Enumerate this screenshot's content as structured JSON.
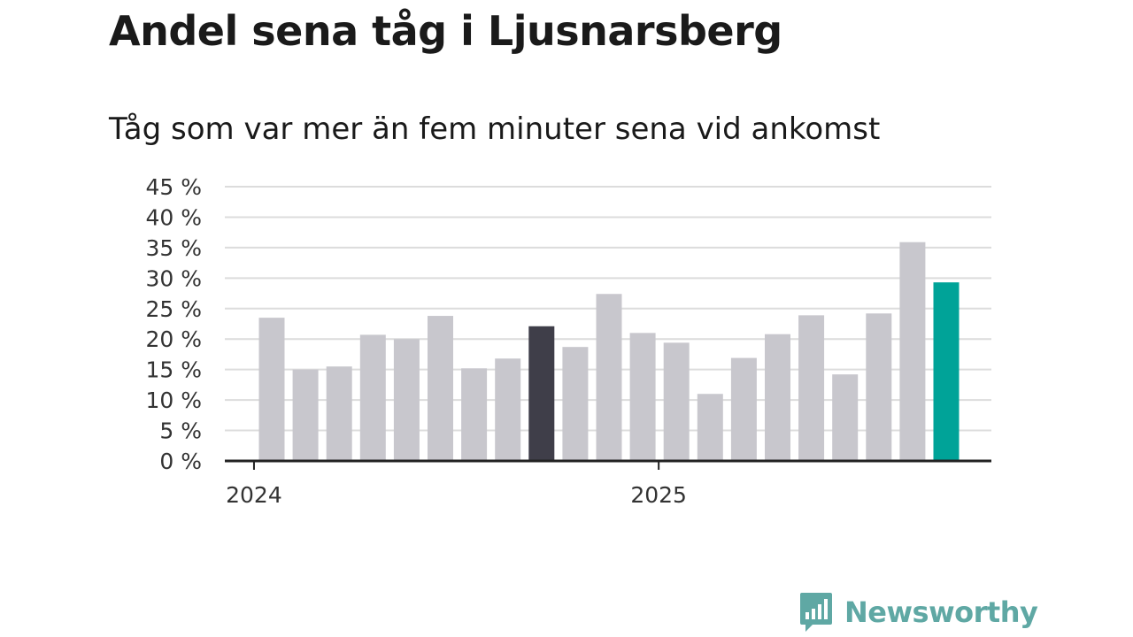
{
  "header": {
    "title": "Andel sena tåg i Ljusnarsberg",
    "subtitle": "Tåg som var mer än fem minuter sena vid ankomst"
  },
  "brand": {
    "name": "Newsworthy",
    "icon": "bar-chart-logo-icon"
  },
  "colors": {
    "bar_default": "#c8c7cd",
    "bar_highlight": "#3f3e49",
    "bar_latest": "#00a398",
    "grid": "#dcdcdc",
    "axis": "#222222"
  },
  "chart_data": {
    "type": "bar",
    "title": "Andel sena tåg i Ljusnarsberg",
    "subtitle": "Tåg som var mer än fem minuter sena vid ankomst",
    "xlabel": "",
    "ylabel": "",
    "categories": [
      "2024-01",
      "2024-02",
      "2024-03",
      "2024-04",
      "2024-05",
      "2024-06",
      "2024-07",
      "2024-08",
      "2024-09",
      "2024-10",
      "2024-11",
      "2024-12",
      "2025-01",
      "2025-02",
      "2025-03",
      "2025-04",
      "2025-05",
      "2025-06",
      "2025-07",
      "2025-08",
      "2025-09",
      "2025-10"
    ],
    "values": [
      23.5,
      15,
      15.5,
      20.7,
      20,
      23.8,
      15.2,
      16.8,
      22.1,
      18.7,
      27.4,
      21,
      19.4,
      11,
      16.9,
      20.8,
      23.9,
      14.2,
      24.2,
      35.9,
      29.3,
      0
    ],
    "bar_months": 21,
    "highlight_index": 8,
    "latest_index": 20,
    "ylim": [
      0,
      45
    ],
    "yticks": [
      0,
      5,
      10,
      15,
      20,
      25,
      30,
      35,
      40,
      45
    ],
    "ytick_labels": [
      "0 %",
      "5 %",
      "10 %",
      "15 %",
      "20 %",
      "25 %",
      "30 %",
      "35 %",
      "40 %",
      "45 %"
    ],
    "xticks": [
      {
        "category": "2024-01",
        "label": "2024"
      },
      {
        "category": "2025-01",
        "label": "2025"
      }
    ],
    "grid": true,
    "legend": "none"
  }
}
